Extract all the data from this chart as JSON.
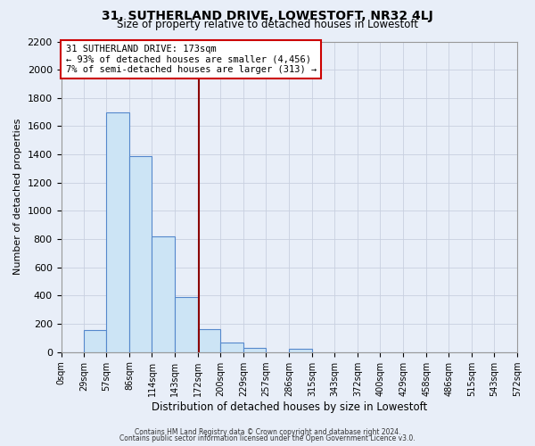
{
  "title": "31, SUTHERLAND DRIVE, LOWESTOFT, NR32 4LJ",
  "subtitle": "Size of property relative to detached houses in Lowestoft",
  "xlabel": "Distribution of detached houses by size in Lowestoft",
  "ylabel": "Number of detached properties",
  "bar_edges": [
    0,
    29,
    57,
    86,
    114,
    143,
    172,
    200,
    229,
    257,
    286,
    315,
    343,
    372,
    400,
    429,
    458,
    486,
    515,
    543,
    572
  ],
  "bar_heights": [
    0,
    155,
    1700,
    1390,
    820,
    390,
    160,
    65,
    30,
    0,
    25,
    0,
    0,
    0,
    0,
    0,
    0,
    0,
    0,
    0
  ],
  "bar_color": "#cce4f5",
  "bar_edge_color": "#5588cc",
  "property_line_x": 173,
  "property_line_color": "#8b0000",
  "annotation_line1": "31 SUTHERLAND DRIVE: 173sqm",
  "annotation_line2": "← 93% of detached houses are smaller (4,456)",
  "annotation_line3": "7% of semi-detached houses are larger (313) →",
  "annotation_box_color": "white",
  "annotation_box_edge_color": "#cc0000",
  "ylim": [
    0,
    2200
  ],
  "yticks": [
    0,
    200,
    400,
    600,
    800,
    1000,
    1200,
    1400,
    1600,
    1800,
    2000,
    2200
  ],
  "tick_labels": [
    "0sqm",
    "29sqm",
    "57sqm",
    "86sqm",
    "114sqm",
    "143sqm",
    "172sqm",
    "200sqm",
    "229sqm",
    "257sqm",
    "286sqm",
    "315sqm",
    "343sqm",
    "372sqm",
    "400sqm",
    "429sqm",
    "458sqm",
    "486sqm",
    "515sqm",
    "543sqm",
    "572sqm"
  ],
  "footer_line1": "Contains HM Land Registry data © Crown copyright and database right 2024.",
  "footer_line2": "Contains public sector information licensed under the Open Government Licence v3.0.",
  "bg_color": "#e8eef8",
  "grid_color": "#c8d0e0"
}
